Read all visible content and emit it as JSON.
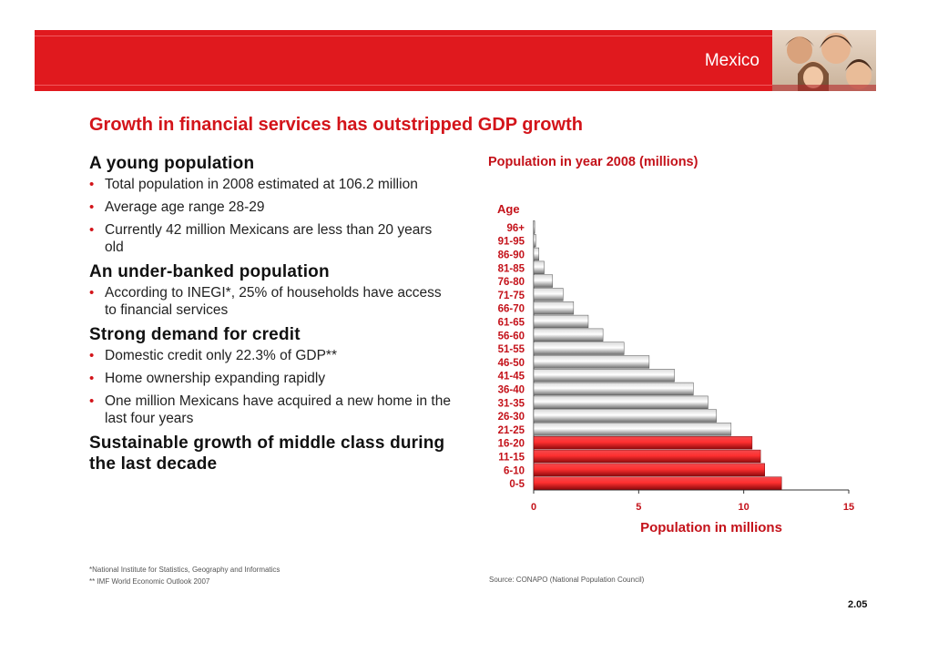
{
  "banner": {
    "title": "Mexico"
  },
  "slide_title": "Growth in financial services has outstripped GDP growth",
  "sections": [
    {
      "heading": "A young population",
      "bullets": [
        "Total population in 2008 estimated at 106.2 million",
        "Average age range 28-29",
        "Currently 42 million Mexicans are less than 20 years old"
      ]
    },
    {
      "heading": "An under-banked population",
      "bullets": [
        "According to INEGI*, 25% of households have access to financial services"
      ]
    },
    {
      "heading": "Strong demand for credit",
      "bullets": [
        "Domestic credit only 22.3% of GDP**",
        "Home ownership expanding rapidly",
        "One million Mexicans have acquired a new home in the last four years"
      ]
    },
    {
      "heading": "Sustainable growth of middle class during the last decade",
      "bullets": []
    }
  ],
  "footnotes": [
    "*National Institute for Statistics, Geography and Informatics",
    "** IMF World Economic Outlook 2007"
  ],
  "source": "Source: CONAPO (National Population Council)",
  "page_number": "2.05",
  "colors": {
    "accent": "#d3141a",
    "bar_gray": "#8a8a8a",
    "bar_red": "#e0191e"
  },
  "chart_data": {
    "type": "bar",
    "orientation": "horizontal",
    "title": "Population in year 2008 (millions)",
    "ylabel": "Age",
    "xlabel": "Population in millions",
    "categories": [
      "0-5",
      "6-10",
      "11-15",
      "16-20",
      "21-25",
      "26-30",
      "31-35",
      "36-40",
      "41-45",
      "46-50",
      "51-55",
      "56-60",
      "61-65",
      "66-70",
      "71-75",
      "76-80",
      "81-85",
      "86-90",
      "91-95",
      "96+"
    ],
    "values": [
      11.8,
      11.0,
      10.8,
      10.4,
      9.4,
      8.7,
      8.3,
      7.6,
      6.7,
      5.5,
      4.3,
      3.3,
      2.6,
      1.9,
      1.4,
      0.9,
      0.5,
      0.25,
      0.1,
      0.05
    ],
    "highlight_categories": [
      "0-5",
      "6-10",
      "11-15",
      "16-20"
    ],
    "xlim": [
      0,
      15
    ],
    "xticks": [
      0,
      5,
      10,
      15
    ],
    "grid": false
  }
}
